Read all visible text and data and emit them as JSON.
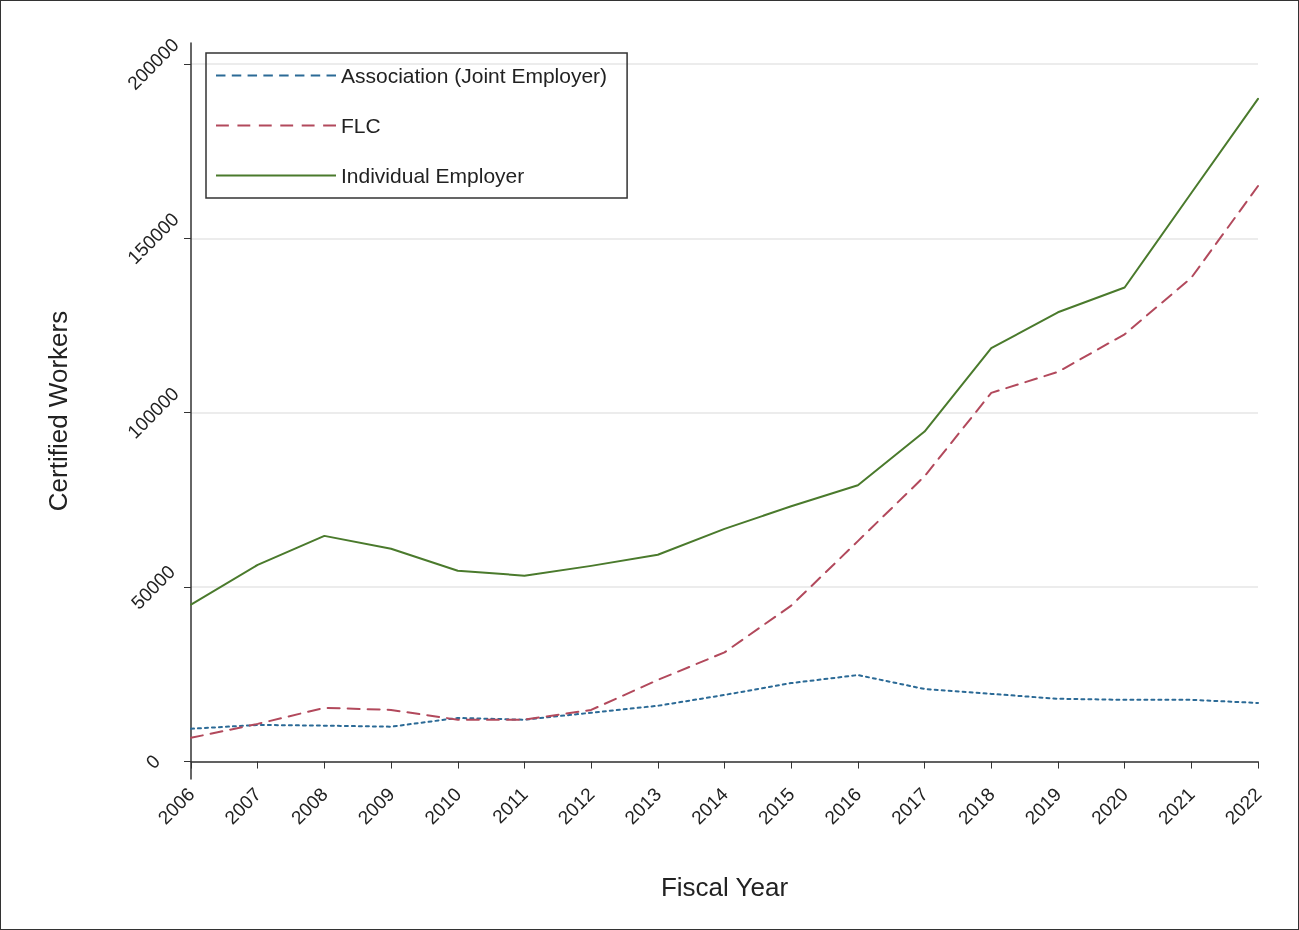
{
  "chart_data": {
    "type": "line",
    "xlabel": "Fiscal Year",
    "ylabel": "Certified Workers",
    "categories": [
      "2006",
      "2007",
      "2008",
      "2009",
      "2010",
      "2011",
      "2012",
      "2013",
      "2014",
      "2015",
      "2016",
      "2017",
      "2018",
      "2019",
      "2020",
      "2021",
      "2022"
    ],
    "series": [
      {
        "name": "Association (Joint Employer)",
        "color": "#2b6a96",
        "line_style": "dotted",
        "values": [
          9400,
          10500,
          10300,
          10000,
          12500,
          12000,
          14000,
          16000,
          19100,
          22500,
          24800,
          20800,
          19400,
          18000,
          17700,
          17700,
          16800
        ]
      },
      {
        "name": "FLC",
        "color": "#b2495c",
        "line_style": "dashed",
        "values": [
          6800,
          10800,
          15400,
          14800,
          12000,
          12000,
          14800,
          23400,
          31300,
          44700,
          63200,
          81800,
          105700,
          111700,
          122500,
          138700,
          165000
        ]
      },
      {
        "name": "Individual Employer",
        "color": "#4a7a2c",
        "line_style": "solid",
        "values": [
          45000,
          56400,
          64700,
          61000,
          54700,
          53300,
          56100,
          59300,
          66700,
          73200,
          79200,
          94600,
          118500,
          128800,
          135900,
          163000,
          190000
        ]
      }
    ],
    "ylim": [
      -5000,
      206000
    ],
    "yticks": [
      0,
      50000,
      100000,
      150000,
      200000
    ],
    "grid": "y",
    "legend": "top left",
    "marker": "none"
  }
}
